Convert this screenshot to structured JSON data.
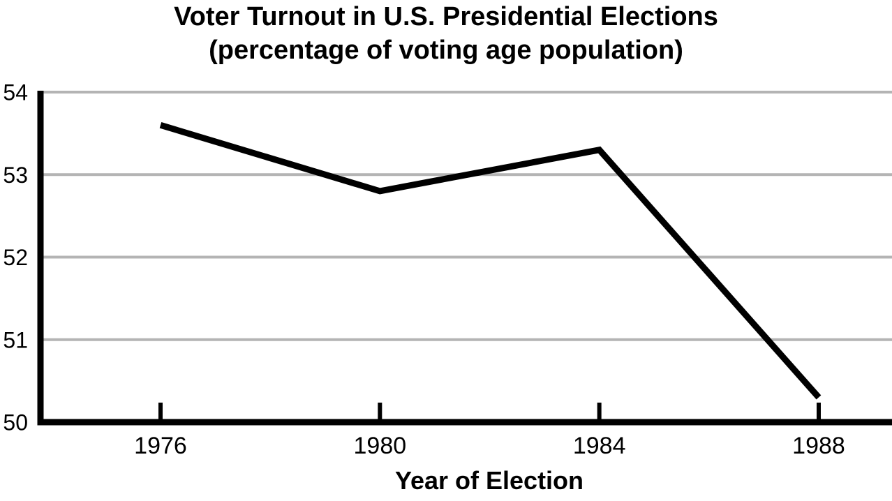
{
  "chart": {
    "title_line1": "Voter Turnout in U.S. Presidential Elections",
    "title_line2": "(percentage of voting age population)"
  },
  "chart_data": {
    "type": "line",
    "title": "Voter Turnout in U.S. Presidential Elections (percentage of voting age population)",
    "x": [
      "1976",
      "1980",
      "1984",
      "1988"
    ],
    "values": [
      53.6,
      52.8,
      53.3,
      50.3
    ],
    "xlabel": "Year of Election",
    "ylabel": "",
    "ylim": [
      50,
      54
    ],
    "yticks": [
      50,
      51,
      52,
      53,
      54
    ],
    "grid": true,
    "legend": false,
    "colors": {
      "line": "#000000",
      "axis": "#000000",
      "gridline": "#b4b4b4",
      "text": "#000000",
      "background": "#ffffff"
    }
  }
}
